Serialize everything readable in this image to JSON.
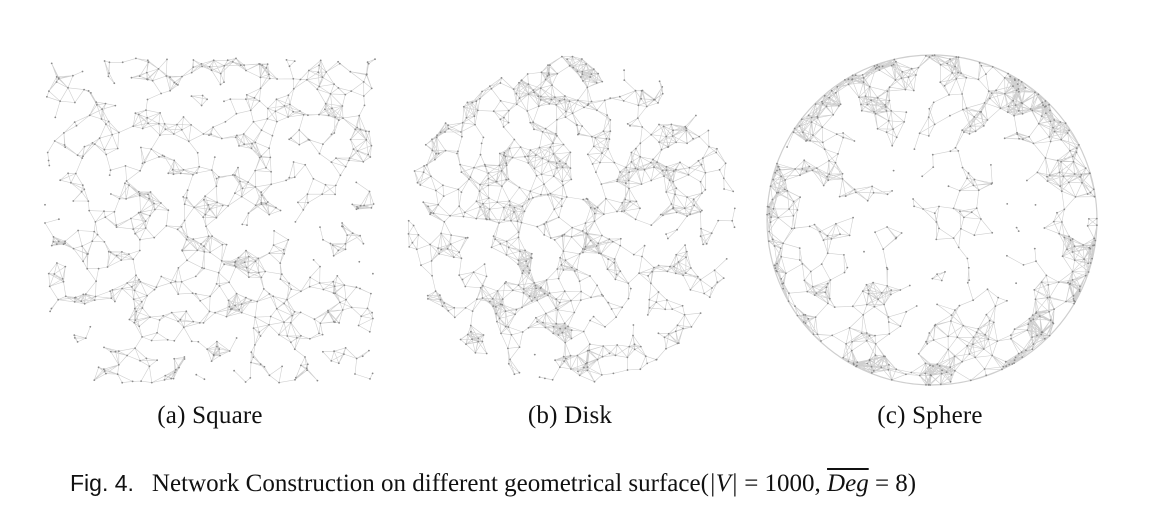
{
  "figure": {
    "panels": [
      {
        "id": "a",
        "label": "(a) Square",
        "shape": "square"
      },
      {
        "id": "b",
        "label": "(b) Disk",
        "shape": "disk"
      },
      {
        "id": "c",
        "label": "(c) Sphere",
        "shape": "sphere"
      }
    ],
    "caption": {
      "fig_label": "Fig. 4.",
      "text": "Network Construction on different geometrical surface(",
      "v_part": "|V|",
      "eq1": " = 1000, ",
      "deg": "Deg",
      "eq2": " = 8)"
    },
    "colors": {
      "edge": "#cfcfcf",
      "node": "#8a8a8a"
    }
  }
}
